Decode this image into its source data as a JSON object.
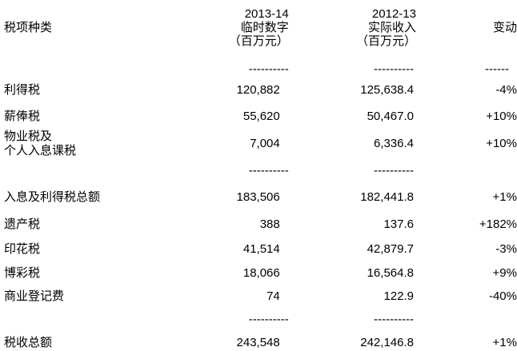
{
  "table": {
    "header": {
      "col1": "税项种类",
      "col2": {
        "line1": "2013-14",
        "line2": "临时数字",
        "line3": "（百万元）"
      },
      "col3": {
        "line1": "2012-13",
        "line2": "实际收入",
        "line3": "（百万元）"
      },
      "col4": "变动"
    },
    "dash_long": "----------",
    "dash_short": "------",
    "rows": [
      {
        "type": "dash",
        "c2": true,
        "c3": true,
        "c4": true
      },
      {
        "type": "data",
        "label": "利得税",
        "label2": "",
        "v2013": "120,882",
        "v2012": "125,638.4",
        "change": "-4%"
      },
      {
        "type": "data",
        "label": "薪俸税",
        "label2": "",
        "v2013": "55,620",
        "v2012": "50,467.0",
        "change": "+10%"
      },
      {
        "type": "data",
        "label": "物业税及",
        "label2": "个人入息课税",
        "v2013": "7,004",
        "v2012": "6,336.4",
        "change": "+10%"
      },
      {
        "type": "dash",
        "c2": true,
        "c3": true,
        "c4": false
      },
      {
        "type": "data",
        "label": "入息及利得税总额",
        "label2": "",
        "v2013": "183,506",
        "v2012": "182,441.8",
        "change": "+1%"
      },
      {
        "type": "data",
        "label": "遗产税",
        "label2": "",
        "v2013": "388",
        "v2012": "137.6",
        "change": "+182%"
      },
      {
        "type": "data",
        "label": "印花税",
        "label2": "",
        "v2013": "41,514",
        "v2012": "42,879.7",
        "change": "-3%"
      },
      {
        "type": "data",
        "label": "博彩税",
        "label2": "",
        "v2013": "18,066",
        "v2012": "16,564.8",
        "change": "+9%"
      },
      {
        "type": "data",
        "label": "商业登记费",
        "label2": "",
        "v2013": "74",
        "v2012": "122.9",
        "change": "-40%"
      },
      {
        "type": "dash",
        "c2": true,
        "c3": true,
        "c4": false
      },
      {
        "type": "data",
        "label": "税收总额",
        "label2": "",
        "v2013": "243,548",
        "v2012": "242,146.8",
        "change": "+1%"
      }
    ]
  }
}
